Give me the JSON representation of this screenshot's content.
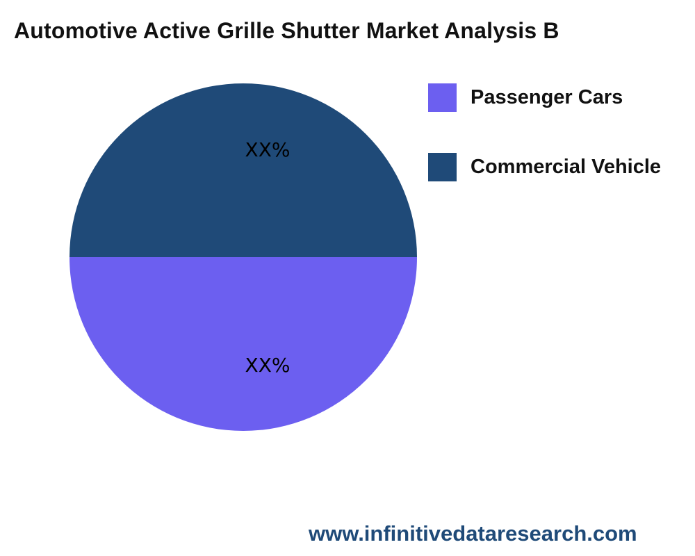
{
  "chart_data": {
    "type": "pie",
    "title": "Automotive Active Grille Shutter Market Analysis B",
    "slices": [
      {
        "name": "Passenger Cars",
        "value": 50,
        "label": "XX%",
        "color": "#6C5FF0"
      },
      {
        "name": "Commercial Vehicle",
        "value": 50,
        "label": "XX%",
        "color": "#1F4A78"
      }
    ],
    "legend_placement": "right"
  },
  "footer": {
    "url": "www.infinitivedataresearch.com"
  }
}
